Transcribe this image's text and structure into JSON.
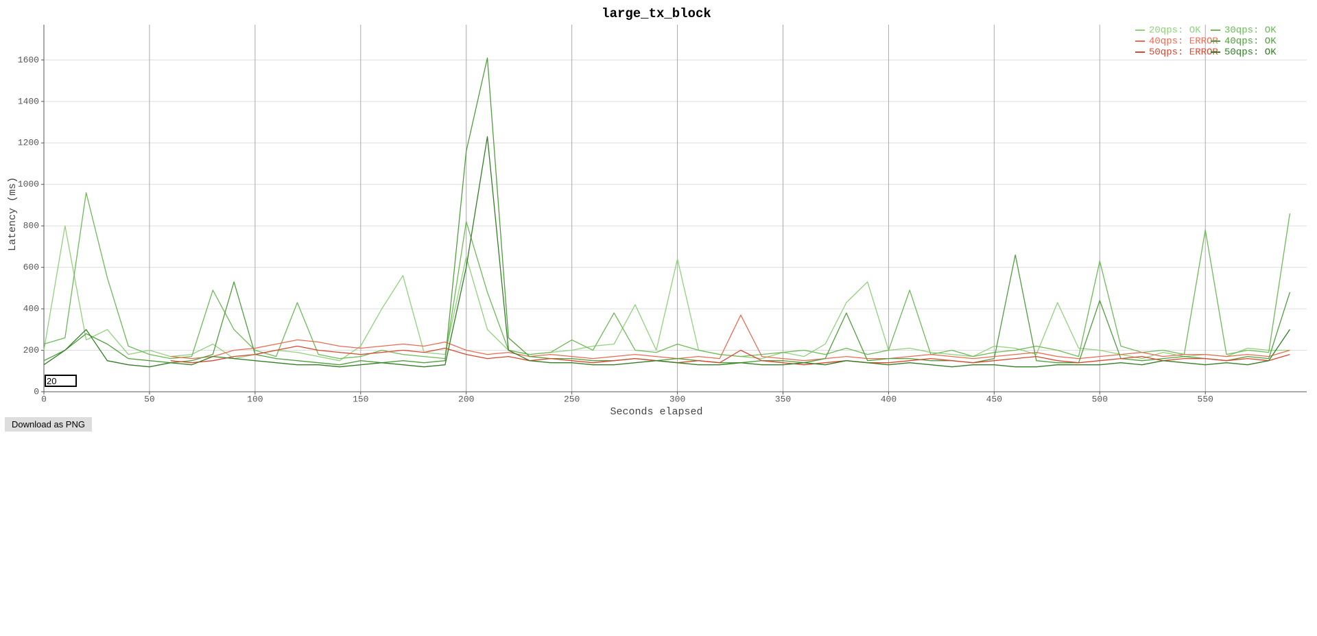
{
  "chart_data": {
    "type": "line",
    "title": "large_tx_block",
    "x_label": "Seconds elapsed",
    "y_label": "Latency (ms)",
    "x": [
      0,
      10,
      20,
      30,
      40,
      50,
      60,
      70,
      80,
      90,
      100,
      110,
      120,
      130,
      140,
      150,
      160,
      170,
      180,
      190,
      200,
      210,
      220,
      230,
      240,
      250,
      260,
      270,
      280,
      290,
      300,
      310,
      320,
      330,
      340,
      350,
      360,
      370,
      380,
      390,
      400,
      410,
      420,
      430,
      440,
      450,
      460,
      470,
      480,
      490,
      500,
      510,
      520,
      530,
      540,
      550,
      560,
      570,
      580,
      590
    ],
    "series": [
      {
        "name": "20qps: OK",
        "color": "#8fd27a",
        "values": [
          200,
          800,
          250,
          300,
          180,
          200,
          170,
          180,
          230,
          160,
          180,
          200,
          190,
          170,
          150,
          220,
          400,
          560,
          190,
          180,
          650,
          300,
          200,
          180,
          190,
          200,
          220,
          230,
          420,
          200,
          640,
          200,
          180,
          170,
          160,
          190,
          170,
          230,
          430,
          530,
          200,
          210,
          190,
          180,
          170,
          220,
          210,
          180,
          430,
          210,
          200,
          180,
          160,
          190,
          170,
          180,
          170,
          210,
          200,
          200
        ]
      },
      {
        "name": "30qps: OK",
        "color": "#6cbb55",
        "values": [
          230,
          260,
          960,
          550,
          220,
          180,
          160,
          170,
          490,
          300,
          200,
          170,
          430,
          180,
          160,
          170,
          200,
          180,
          170,
          160,
          820,
          480,
          200,
          180,
          190,
          250,
          200,
          380,
          200,
          190,
          230,
          200,
          180,
          170,
          180,
          190,
          200,
          180,
          210,
          180,
          200,
          490,
          180,
          200,
          170,
          190,
          200,
          220,
          200,
          170,
          630,
          220,
          190,
          200,
          180,
          780,
          180,
          200,
          190,
          860
        ]
      },
      {
        "name": "40qps: ERROR",
        "color": "#ec6a52",
        "values": [
          null,
          null,
          null,
          null,
          null,
          null,
          170,
          160,
          170,
          200,
          210,
          230,
          250,
          240,
          220,
          210,
          220,
          230,
          220,
          240,
          200,
          180,
          190,
          170,
          180,
          170,
          160,
          170,
          180,
          170,
          160,
          170,
          160,
          370,
          170,
          160,
          150,
          160,
          170,
          160,
          160,
          170,
          180,
          170,
          160,
          170,
          180,
          190,
          170,
          160,
          170,
          180,
          190,
          170,
          180,
          180,
          170,
          180,
          170,
          200
        ]
      },
      {
        "name": "40qps: OK",
        "color": "#4f9f3c",
        "values": [
          150,
          200,
          280,
          230,
          160,
          150,
          140,
          150,
          180,
          530,
          180,
          160,
          150,
          140,
          130,
          150,
          140,
          150,
          140,
          150,
          1160,
          1610,
          260,
          170,
          160,
          160,
          150,
          150,
          160,
          150,
          160,
          150,
          140,
          140,
          150,
          150,
          140,
          160,
          380,
          150,
          160,
          160,
          150,
          150,
          140,
          160,
          660,
          150,
          140,
          140,
          440,
          160,
          150,
          160,
          170,
          160,
          150,
          170,
          160,
          480
        ]
      },
      {
        "name": "50qps: ERROR",
        "color": "#d9472f",
        "values": [
          null,
          null,
          null,
          null,
          null,
          null,
          150,
          140,
          150,
          170,
          180,
          200,
          220,
          200,
          190,
          180,
          190,
          200,
          190,
          210,
          180,
          160,
          170,
          150,
          160,
          150,
          140,
          150,
          160,
          150,
          140,
          150,
          140,
          200,
          150,
          140,
          130,
          140,
          150,
          140,
          140,
          150,
          160,
          150,
          140,
          150,
          160,
          170,
          150,
          140,
          150,
          160,
          170,
          150,
          160,
          160,
          150,
          160,
          150,
          180
        ]
      },
      {
        "name": "50qps: OK",
        "color": "#2f7f22",
        "values": [
          130,
          200,
          300,
          150,
          130,
          120,
          140,
          130,
          170,
          160,
          150,
          140,
          130,
          130,
          120,
          130,
          140,
          130,
          120,
          130,
          600,
          1230,
          200,
          150,
          140,
          140,
          130,
          130,
          140,
          150,
          140,
          130,
          130,
          140,
          130,
          130,
          140,
          130,
          150,
          140,
          130,
          140,
          130,
          120,
          130,
          130,
          120,
          120,
          130,
          130,
          130,
          140,
          130,
          150,
          140,
          130,
          140,
          130,
          150,
          300
        ]
      }
    ],
    "xlim": [
      0,
      598
    ],
    "ylim": [
      0,
      1770
    ],
    "xticks": [
      0,
      50,
      100,
      150,
      200,
      250,
      300,
      350,
      400,
      450,
      500,
      550
    ],
    "yticks": [
      0,
      200,
      400,
      600,
      800,
      1000,
      1200,
      1400,
      1600
    ],
    "grid": true,
    "legend": "upper right"
  },
  "window_input": "20",
  "button": "Download as PNG"
}
